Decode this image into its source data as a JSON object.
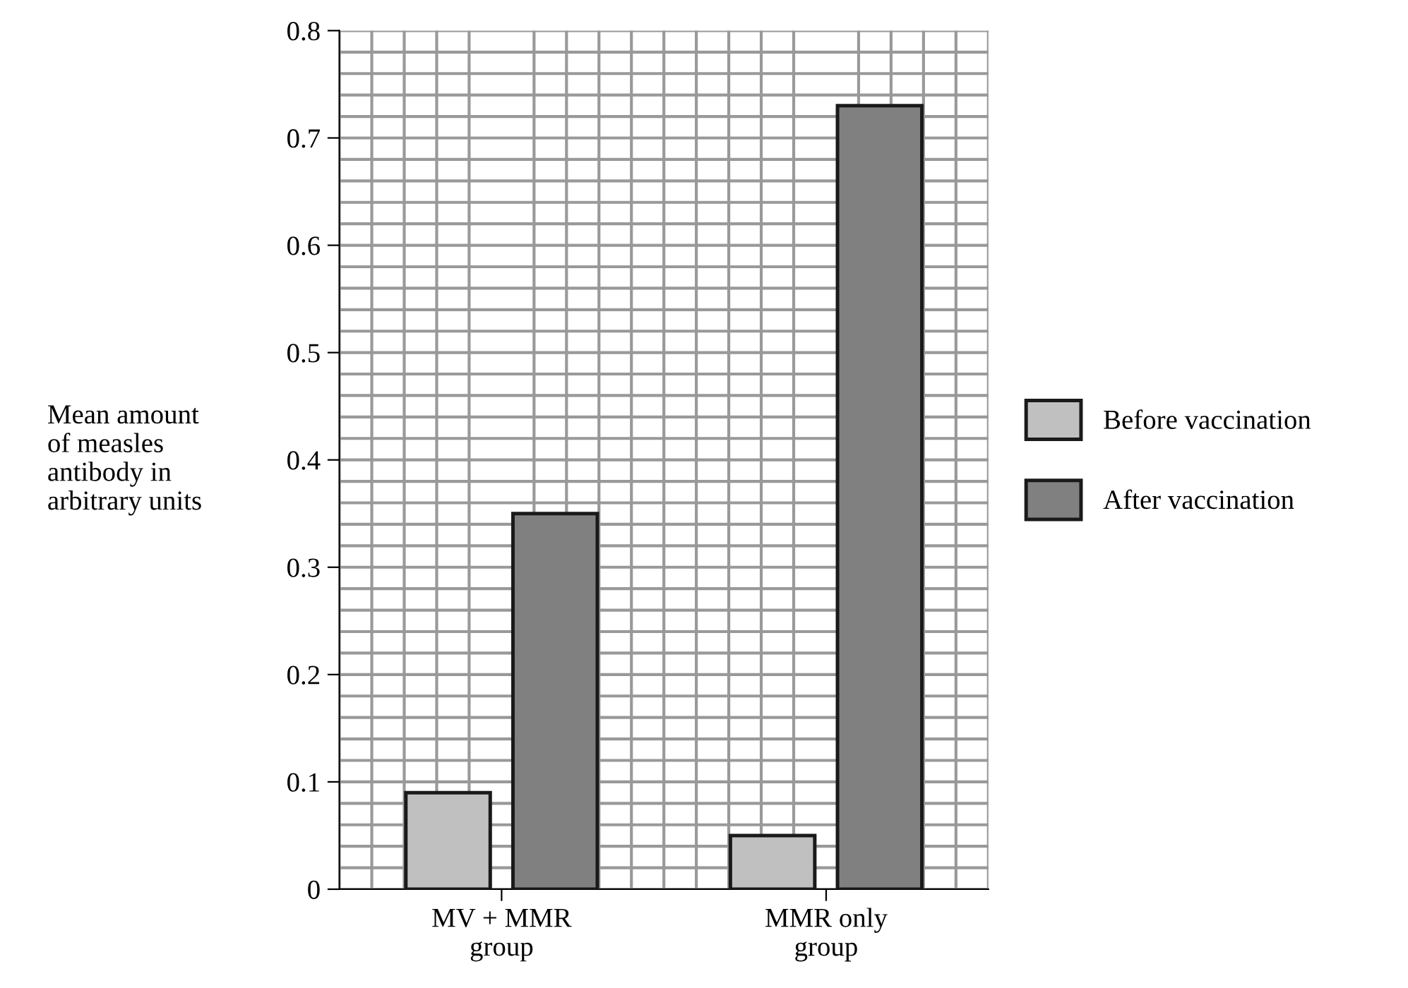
{
  "chart_data": {
    "type": "bar",
    "ylabel": "Mean amount\nof measles\nantibody in\narbitrary units",
    "categories": [
      "MV + MMR\ngroup",
      "MMR only\ngroup"
    ],
    "series": [
      {
        "name": "Before vaccination",
        "color": "#c0c0c0",
        "values": [
          0.09,
          0.05
        ]
      },
      {
        "name": "After vaccination",
        "color": "#808080",
        "values": [
          0.35,
          0.73
        ]
      }
    ],
    "ylim": [
      0,
      0.8
    ],
    "yticks": [
      0,
      0.1,
      0.2,
      0.3,
      0.4,
      0.5,
      0.6,
      0.7,
      0.8
    ],
    "grid": true,
    "legend": "right"
  }
}
